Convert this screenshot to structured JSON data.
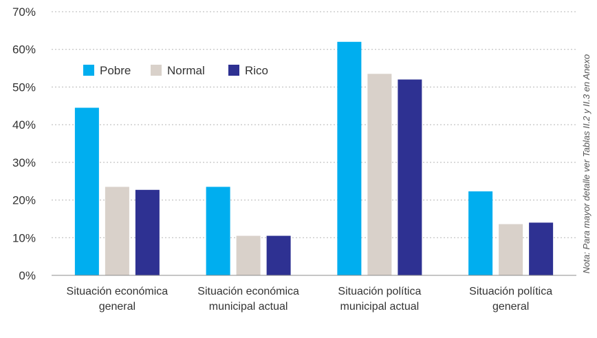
{
  "chart_data": {
    "type": "bar",
    "title": "",
    "xlabel": "",
    "ylabel": "",
    "ylim": [
      0,
      70
    ],
    "yticks": [
      0,
      10,
      20,
      30,
      40,
      50,
      60,
      70
    ],
    "ytick_labels": [
      "0%",
      "10%",
      "20%",
      "30%",
      "40%",
      "50%",
      "60%",
      "70%"
    ],
    "grid": "horizontal dotted",
    "legend_position": "top-left",
    "categories": [
      [
        "Situación económica",
        "general"
      ],
      [
        "Situación económica",
        "municipal actual"
      ],
      [
        "Situación política",
        "municipal actual"
      ],
      [
        "Situación política",
        "general"
      ]
    ],
    "series": [
      {
        "name": "Pobre",
        "color": "#00aeef",
        "values": [
          44.5,
          23.5,
          62.0,
          22.3
        ]
      },
      {
        "name": "Normal",
        "color": "#d9d1ca",
        "values": [
          23.5,
          10.5,
          53.5,
          13.6
        ]
      },
      {
        "name": "Rico",
        "color": "#2e3192",
        "values": [
          22.7,
          10.5,
          52.0,
          14.0
        ]
      }
    ],
    "note": "Nota: Para mayor detalle ver Tablas II.2 y II.3 en Anexo"
  }
}
